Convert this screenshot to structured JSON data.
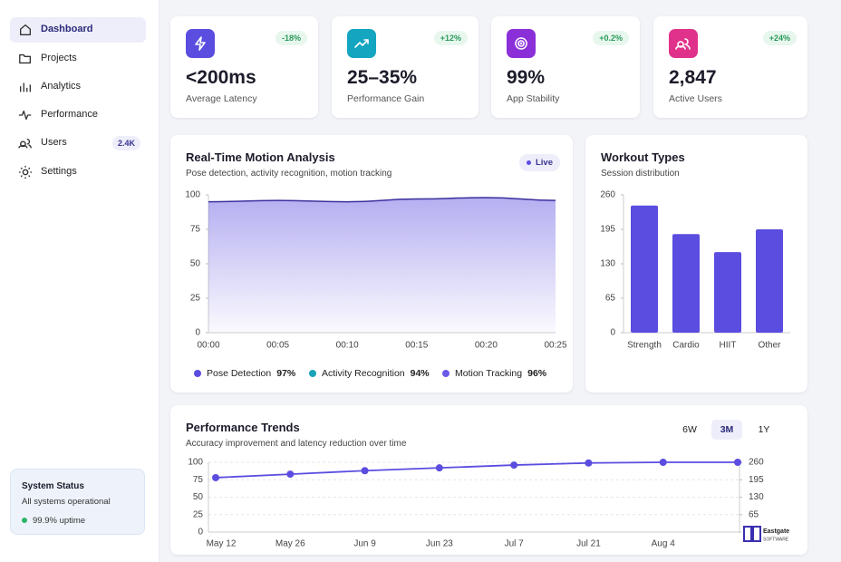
{
  "sidebar": {
    "nav": [
      {
        "label": "Dashboard",
        "active": true
      },
      {
        "label": "Projects"
      },
      {
        "label": "Analytics"
      },
      {
        "label": "Performance"
      },
      {
        "label": "Users",
        "badge": "2.4K"
      },
      {
        "label": "Settings"
      }
    ],
    "status": {
      "title": "System Status",
      "text": "All systems operational",
      "uptime": "99.9% uptime"
    }
  },
  "kpis": [
    {
      "value": "<200ms",
      "label": "Average Latency",
      "change": "-18%",
      "color": "#5b4de0"
    },
    {
      "value": "25–35%",
      "label": "Performance Gain",
      "change": "+12%",
      "color": "#14a5c0"
    },
    {
      "value": "99%",
      "label": "App Stability",
      "change": "+0.2%",
      "color": "#8b2fd9"
    },
    {
      "value": "2,847",
      "label": "Active Users",
      "change": "+24%",
      "color": "#e0328a"
    }
  ],
  "motion_chart": {
    "type": "area",
    "title": "Real-Time Motion Analysis",
    "subtitle": "Pose detection, activity recognition, motion tracking",
    "badge": "Live",
    "categories": [
      "00:00",
      "00:05",
      "00:10",
      "00:15",
      "00:20",
      "00:25"
    ],
    "values": [
      95,
      96,
      95,
      97,
      98,
      96
    ],
    "color": "#5b4de0",
    "ylim": [
      0,
      100
    ],
    "yticks": [
      0,
      25,
      50,
      75,
      100
    ],
    "legend": [
      {
        "name": "Pose Detection",
        "value": 97,
        "value_label": "97%",
        "color": "#5b4de0"
      },
      {
        "name": "Activity Recognition",
        "value": 94,
        "value_label": "94%",
        "color": "#1aa3b8"
      },
      {
        "name": "Motion Tracking",
        "value": 96,
        "value_label": "96%",
        "color": "#6a5ae8"
      }
    ]
  },
  "workout_chart": {
    "type": "bar",
    "title": "Workout Types",
    "subtitle": "Session distribution",
    "categories": [
      "Strength",
      "Cardio",
      "HIIT",
      "Other"
    ],
    "values": [
      240,
      186,
      152,
      195
    ],
    "color": "#5b4de0",
    "ylim": [
      0,
      260
    ],
    "yticks": [
      0,
      65,
      130,
      195,
      260
    ]
  },
  "trends_chart": {
    "type": "line",
    "title": "Performance Trends",
    "subtitle": "Accuracy improvement and latency reduction over time",
    "ranges": [
      {
        "label": "6W"
      },
      {
        "label": "3M",
        "active": true
      },
      {
        "label": "1Y"
      }
    ],
    "categories": [
      "May 12",
      "May 26",
      "Jun 9",
      "Jun 23",
      "Jul 7",
      "Jul 21",
      "Aug 4",
      null
    ],
    "values": [
      78,
      83,
      88,
      92,
      96,
      99,
      100,
      100
    ],
    "color": "#5b4de0",
    "ylim": [
      0,
      100
    ],
    "yticks": [
      0,
      25,
      50,
      75,
      100
    ],
    "y2lim": [
      0,
      260
    ],
    "y2ticks": [
      0,
      65,
      130,
      195,
      260
    ]
  },
  "logo": {
    "name": "Eastgate",
    "tagline": "SOFTWARE"
  }
}
